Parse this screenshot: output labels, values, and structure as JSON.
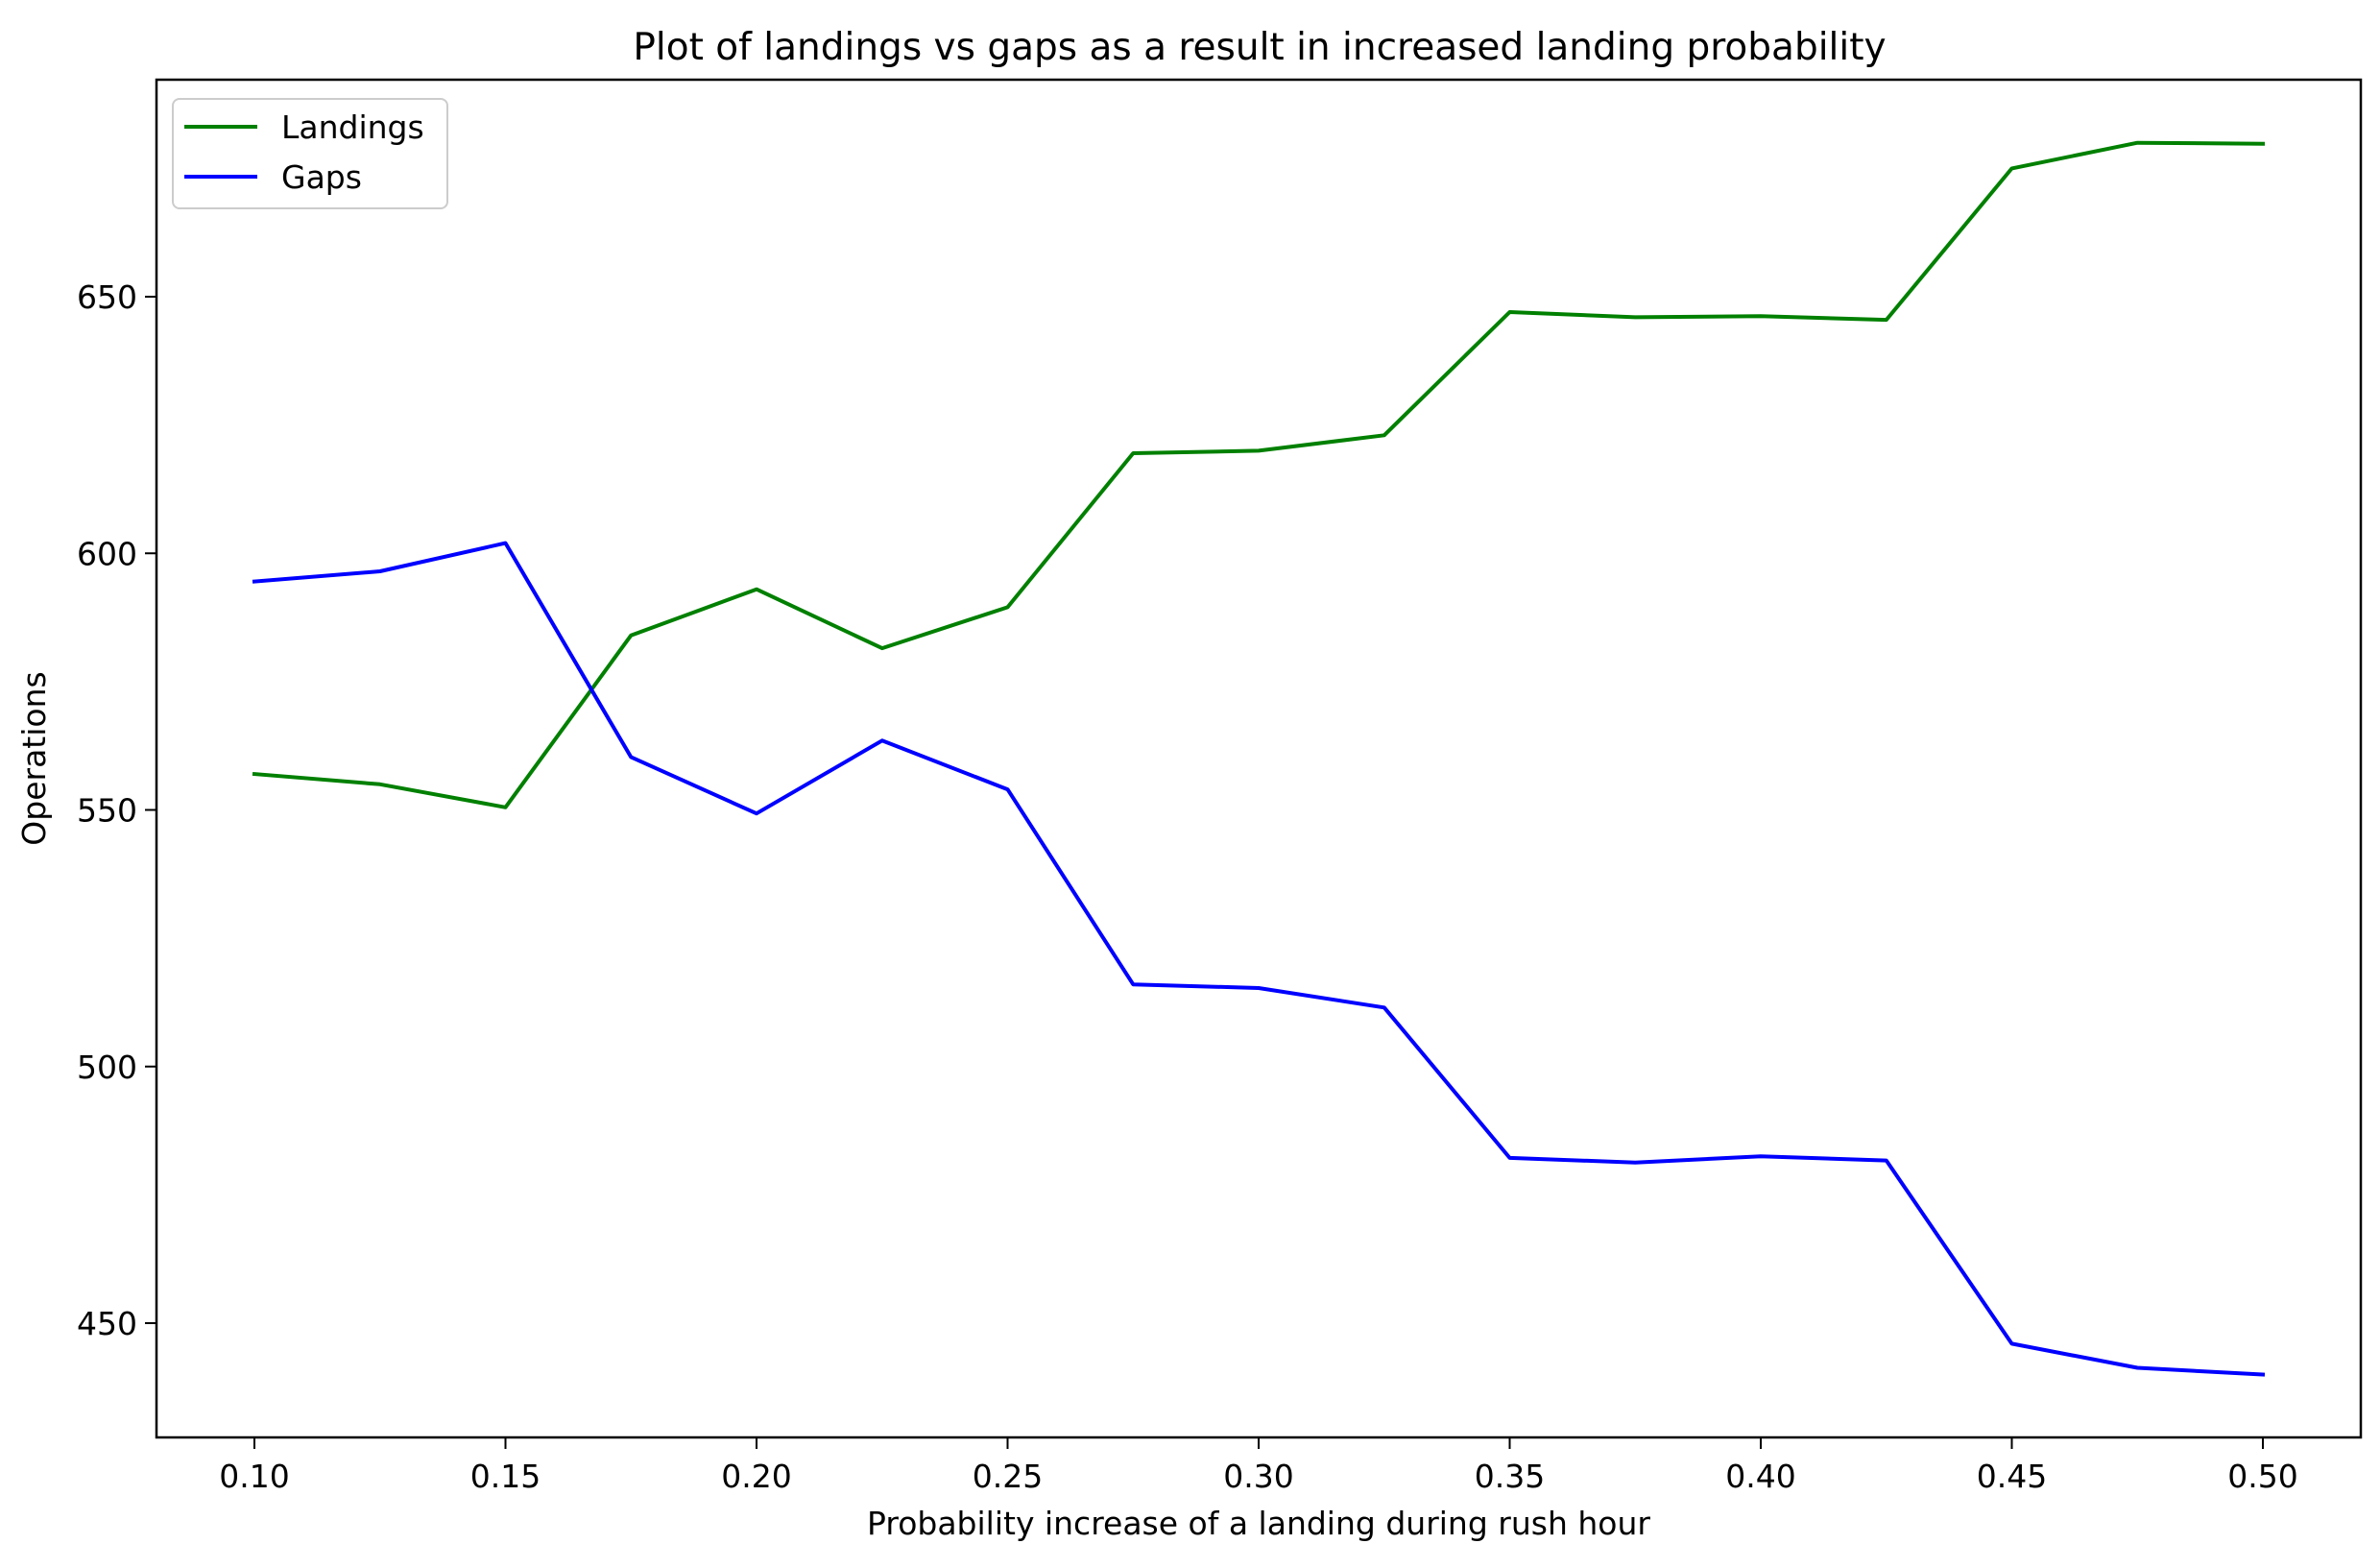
{
  "chart_data": {
    "type": "line",
    "title": "Plot of landings vs gaps as a result in increased landing probability",
    "xlabel": "Probability increase of a landing during rush hour",
    "ylabel": "Operations",
    "xlim": [
      0.08,
      0.52
    ],
    "ylim": [
      428.3,
      692.4
    ],
    "xticks": [
      0.1,
      0.15,
      0.2,
      0.25,
      0.3,
      0.35,
      0.4,
      0.45,
      0.5
    ],
    "xtick_labels": [
      "0.10",
      "0.15",
      "0.20",
      "0.25",
      "0.30",
      "0.35",
      "0.40",
      "0.45",
      "0.50"
    ],
    "yticks": [
      450,
      500,
      550,
      600,
      650
    ],
    "ytick_labels": [
      "450",
      "500",
      "550",
      "600",
      "650"
    ],
    "grid": false,
    "legend_position": "upper-left",
    "x": [
      0.1,
      0.125,
      0.15,
      0.175,
      0.2,
      0.225,
      0.25,
      0.275,
      0.3,
      0.325,
      0.35,
      0.375,
      0.4,
      0.425,
      0.45,
      0.475,
      0.5
    ],
    "series": [
      {
        "name": "Landings",
        "color": "#008000",
        "values": [
          557,
          555,
          550.5,
          584,
          593,
          581.5,
          589.5,
          619.5,
          620,
          623,
          647,
          646,
          646.2,
          645.5,
          675,
          680,
          679.8
        ]
      },
      {
        "name": "Gaps",
        "color": "#0000ff",
        "values": [
          594.5,
          596.5,
          602,
          560.3,
          549.3,
          563.5,
          554,
          516,
          515.3,
          511.5,
          482.2,
          481.3,
          482.5,
          481.7,
          446,
          441.3,
          440
        ]
      }
    ]
  }
}
